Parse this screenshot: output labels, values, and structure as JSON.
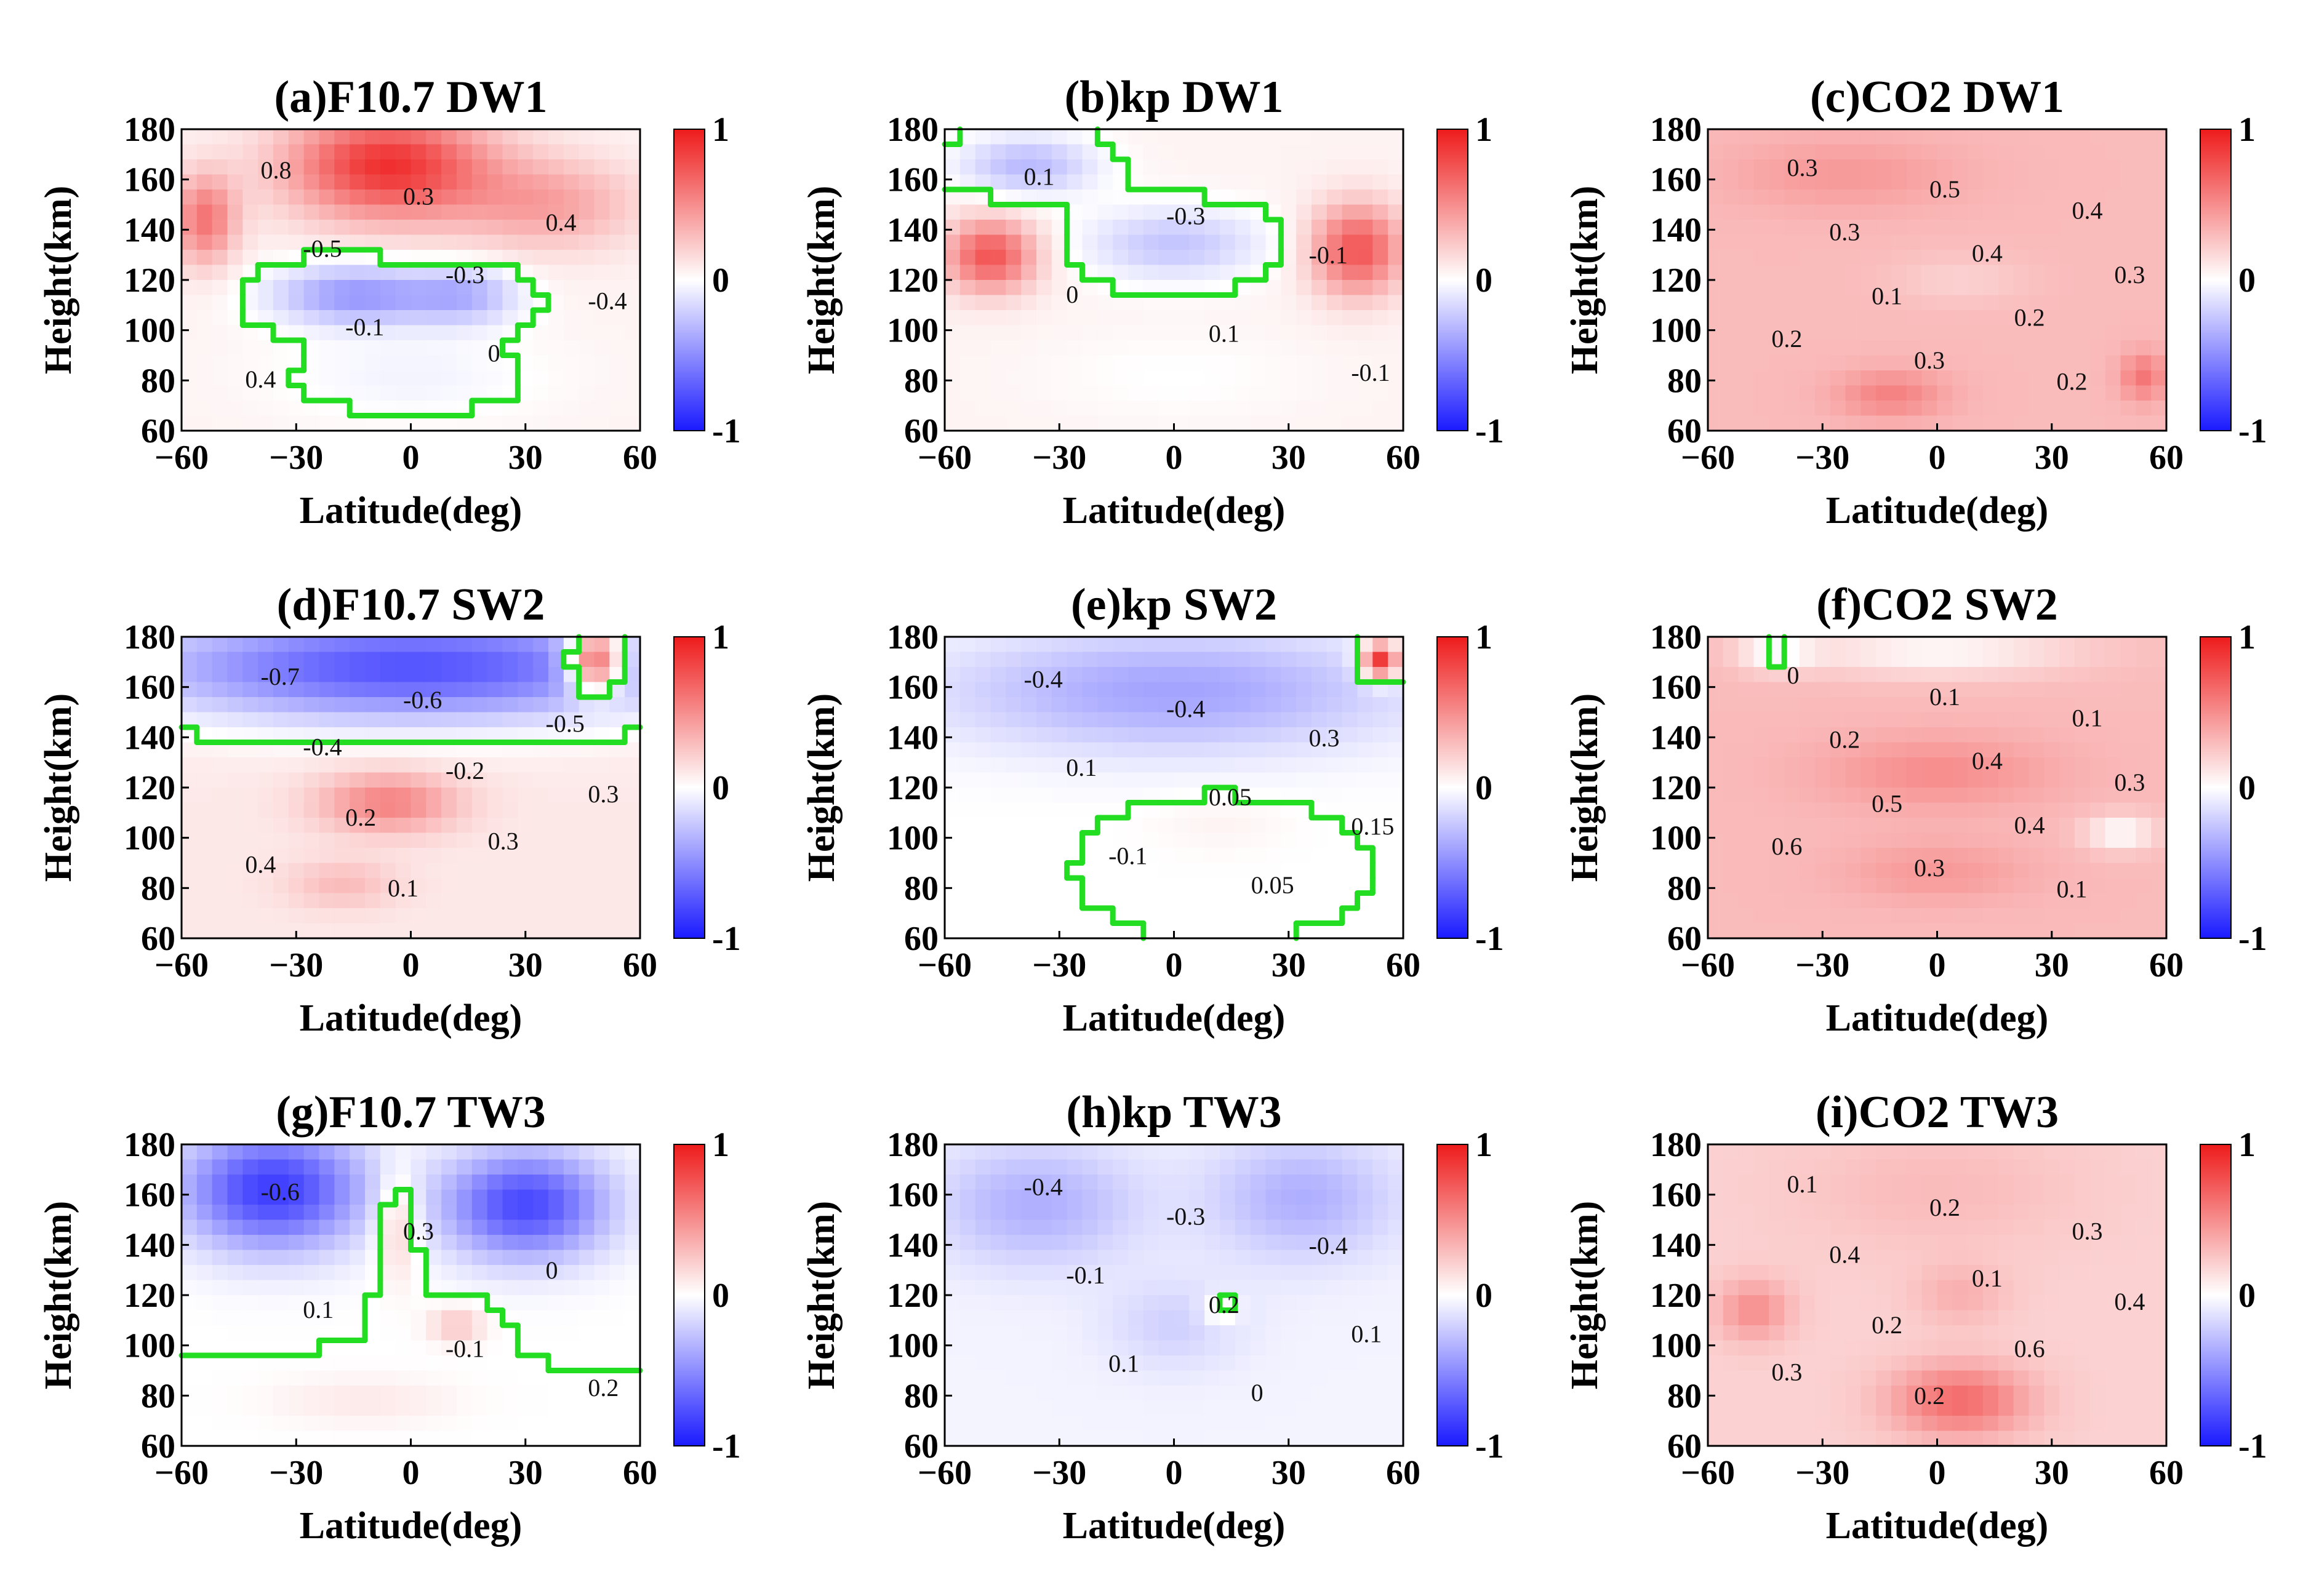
{
  "figure": {
    "xlabel": "Latitude(deg)",
    "ylabel": "Height(km)",
    "colorbar": {
      "ticks": [
        "1",
        "0",
        "-1"
      ],
      "min": -1,
      "max": 1,
      "colormap": [
        "#1a1aff",
        "#ffffff",
        "#ee1b1b"
      ]
    },
    "zero_contour_color": "#22dd22"
  },
  "chart_data": [
    {
      "type": "heatmap",
      "panel": "a",
      "title": "(a)F10.7 DW1",
      "xlabel": "Latitude(deg)",
      "ylabel": "Height(km)",
      "xlim": [
        -60,
        60
      ],
      "ylim": [
        60,
        180
      ],
      "xticks": [
        "-60",
        "-30",
        "0",
        "30",
        "60"
      ],
      "yticks": [
        "60",
        "80",
        "100",
        "120",
        "140",
        "160",
        "180"
      ],
      "clim": [
        -1,
        1
      ],
      "contour_labels": [
        "0.8",
        "0.3",
        "0.4",
        "-0.5",
        "-0.3",
        "-0.4",
        "-0.1",
        "0",
        "0.4"
      ]
    },
    {
      "type": "heatmap",
      "panel": "b",
      "title": "(b)kp DW1",
      "xlabel": "Latitude(deg)",
      "ylabel": "Height(km)",
      "xlim": [
        -60,
        60
      ],
      "ylim": [
        60,
        180
      ],
      "xticks": [
        "-60",
        "-30",
        "0",
        "30",
        "60"
      ],
      "yticks": [
        "60",
        "80",
        "100",
        "120",
        "140",
        "160",
        "180"
      ],
      "clim": [
        -1,
        1
      ],
      "contour_labels": [
        "0.1",
        "-0.3",
        "-0.1",
        "0",
        "0.1",
        "-0.1"
      ]
    },
    {
      "type": "heatmap",
      "panel": "c",
      "title": "(c)CO2 DW1",
      "xlabel": "Latitude(deg)",
      "ylabel": "Height(km)",
      "xlim": [
        -60,
        60
      ],
      "ylim": [
        60,
        180
      ],
      "xticks": [
        "-60",
        "-30",
        "0",
        "30",
        "60"
      ],
      "yticks": [
        "60",
        "80",
        "100",
        "120",
        "140",
        "160",
        "180"
      ],
      "clim": [
        -1,
        1
      ],
      "contour_labels": [
        "0.3",
        "0.5",
        "0.4",
        "0.3",
        "0.4",
        "0.3",
        "0.1",
        "0.2",
        "0.2",
        "0.3",
        "0.2"
      ]
    },
    {
      "type": "heatmap",
      "panel": "d",
      "title": "(d)F10.7 SW2",
      "xlabel": "Latitude(deg)",
      "ylabel": "Height(km)",
      "xlim": [
        -60,
        60
      ],
      "ylim": [
        60,
        180
      ],
      "xticks": [
        "-60",
        "-30",
        "0",
        "30",
        "60"
      ],
      "yticks": [
        "60",
        "80",
        "100",
        "120",
        "140",
        "160",
        "180"
      ],
      "clim": [
        -1,
        1
      ],
      "contour_labels": [
        "-0.7",
        "-0.6",
        "-0.5",
        "-0.4",
        "-0.2",
        "0.3",
        "0.2",
        "0.3",
        "0.4",
        "0.1"
      ]
    },
    {
      "type": "heatmap",
      "panel": "e",
      "title": "(e)kp SW2",
      "xlabel": "Latitude(deg)",
      "ylabel": "Height(km)",
      "xlim": [
        -60,
        60
      ],
      "ylim": [
        60,
        180
      ],
      "xticks": [
        "-60",
        "-30",
        "0",
        "30",
        "60"
      ],
      "yticks": [
        "60",
        "80",
        "100",
        "120",
        "140",
        "160",
        "180"
      ],
      "clim": [
        -1,
        1
      ],
      "contour_labels": [
        "-0.4",
        "-0.4",
        "0.3",
        "0.1",
        "0.05",
        "0.15",
        "-0.1",
        "0.05"
      ]
    },
    {
      "type": "heatmap",
      "panel": "f",
      "title": "(f)CO2 SW2",
      "xlabel": "Latitude(deg)",
      "ylabel": "Height(km)",
      "xlim": [
        -60,
        60
      ],
      "ylim": [
        60,
        180
      ],
      "xticks": [
        "-60",
        "-30",
        "0",
        "30",
        "60"
      ],
      "yticks": [
        "60",
        "80",
        "100",
        "120",
        "140",
        "160",
        "180"
      ],
      "clim": [
        -1,
        1
      ],
      "contour_labels": [
        "0",
        "0.1",
        "0.1",
        "0.2",
        "0.4",
        "0.3",
        "0.5",
        "0.4",
        "0.6",
        "0.3",
        "0.1"
      ]
    },
    {
      "type": "heatmap",
      "panel": "g",
      "title": "(g)F10.7 TW3",
      "xlabel": "Latitude(deg)",
      "ylabel": "Height(km)",
      "xlim": [
        -60,
        60
      ],
      "ylim": [
        60,
        180
      ],
      "xticks": [
        "-60",
        "-30",
        "0",
        "30",
        "60"
      ],
      "yticks": [
        "60",
        "80",
        "100",
        "120",
        "140",
        "160",
        "180"
      ],
      "clim": [
        -1,
        1
      ],
      "contour_labels": [
        "-0.6",
        "0.3",
        "0",
        "0.1",
        "-0.1",
        "0.2"
      ]
    },
    {
      "type": "heatmap",
      "panel": "h",
      "title": "(h)kp TW3",
      "xlabel": "Latitude(deg)",
      "ylabel": "Height(km)",
      "xlim": [
        -60,
        60
      ],
      "ylim": [
        60,
        180
      ],
      "xticks": [
        "-60",
        "-30",
        "0",
        "30",
        "60"
      ],
      "yticks": [
        "60",
        "80",
        "100",
        "120",
        "140",
        "160",
        "180"
      ],
      "clim": [
        -1,
        1
      ],
      "contour_labels": [
        "-0.4",
        "-0.3",
        "-0.4",
        "-0.1",
        "0.2",
        "0.1",
        "0.1",
        "0"
      ]
    },
    {
      "type": "heatmap",
      "panel": "i",
      "title": "(i)CO2 TW3",
      "xlabel": "Latitude(deg)",
      "ylabel": "Height(km)",
      "xlim": [
        -60,
        60
      ],
      "ylim": [
        60,
        180
      ],
      "xticks": [
        "-60",
        "-30",
        "0",
        "30",
        "60"
      ],
      "yticks": [
        "60",
        "80",
        "100",
        "120",
        "140",
        "160",
        "180"
      ],
      "clim": [
        -1,
        1
      ],
      "contour_labels": [
        "0.1",
        "0.2",
        "0.3",
        "0.4",
        "0.1",
        "0.4",
        "0.2",
        "0.6",
        "0.3",
        "0.2"
      ]
    }
  ]
}
